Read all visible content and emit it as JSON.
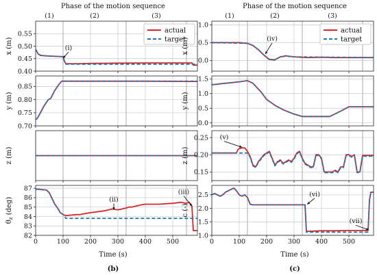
{
  "figure": {
    "sublabels": [
      "(b)",
      "(c)"
    ],
    "top_title": "Phase of the motion sequence",
    "phase_labels": [
      "(1)",
      "(2)",
      "(3)"
    ],
    "xlabel": "Time (s)",
    "legend": {
      "actual": "actual",
      "target": "target"
    }
  },
  "colors": {
    "actual": "#d62728",
    "target": "#1f77b4",
    "grid": "#c8c8c8",
    "phase_line": "#aaaaaa"
  },
  "chart_data": [
    {
      "type": "line",
      "column": "left",
      "row": 0,
      "ylabel": "x (m)",
      "ylim": [
        0.4,
        0.6
      ],
      "yticks": [
        0.4,
        0.45,
        0.5,
        0.55
      ],
      "ytick_labels": [
        "0.40",
        "0.45",
        "0.50",
        "0.55"
      ],
      "xlim": [
        0,
        590
      ],
      "xticks": [
        0,
        100,
        200,
        300,
        400,
        500
      ],
      "xtick_labels": [
        "0",
        "100",
        "200",
        "300",
        "400",
        "500"
      ],
      "phase_boundaries": [
        100,
        330,
        550
      ],
      "legend": true,
      "series": [
        {
          "name": "actual",
          "style": "solid",
          "x": [
            0,
            10,
            20,
            40,
            60,
            80,
            100,
            105,
            110,
            150,
            200,
            300,
            400,
            500,
            570,
            575,
            590
          ],
          "y": [
            0.487,
            0.468,
            0.463,
            0.461,
            0.46,
            0.459,
            0.458,
            0.44,
            0.43,
            0.43,
            0.431,
            0.432,
            0.433,
            0.433,
            0.433,
            0.424,
            0.424
          ]
        },
        {
          "name": "target",
          "style": "dashed",
          "x": [
            0,
            10,
            20,
            60,
            100,
            105,
            110,
            300,
            590
          ],
          "y": [
            0.487,
            0.468,
            0.462,
            0.46,
            0.458,
            0.44,
            0.428,
            0.428,
            0.428
          ]
        }
      ],
      "annotations": [
        {
          "text": "(i)",
          "x": 120,
          "y": 0.485,
          "arrow_to": [
            100,
            0.452
          ]
        }
      ]
    },
    {
      "type": "line",
      "column": "left",
      "row": 1,
      "ylabel": "y (m)",
      "ylim": [
        0.7,
        0.89
      ],
      "yticks": [
        0.7,
        0.75,
        0.8,
        0.85
      ],
      "ytick_labels": [
        "0.70",
        "0.75",
        "0.80",
        "0.85"
      ],
      "xlim": [
        0,
        590
      ],
      "xticks": [
        0,
        100,
        200,
        300,
        400,
        500
      ],
      "xtick_labels": [
        "0",
        "100",
        "200",
        "300",
        "400",
        "500"
      ],
      "phase_boundaries": [
        100,
        330,
        550
      ],
      "series": [
        {
          "name": "actual",
          "style": "solid",
          "x": [
            0,
            5,
            15,
            30,
            45,
            55,
            70,
            85,
            95,
            200,
            400,
            590
          ],
          "y": [
            0.725,
            0.727,
            0.745,
            0.775,
            0.798,
            0.805,
            0.835,
            0.858,
            0.87,
            0.87,
            0.87,
            0.869
          ]
        },
        {
          "name": "target",
          "style": "dashed",
          "x": [
            0,
            5,
            15,
            30,
            45,
            55,
            70,
            85,
            95,
            590
          ],
          "y": [
            0.725,
            0.727,
            0.745,
            0.775,
            0.798,
            0.805,
            0.835,
            0.858,
            0.87,
            0.87
          ]
        }
      ]
    },
    {
      "type": "line",
      "column": "left",
      "row": 2,
      "ylabel": "z (m)",
      "ylim": [
        0.0,
        0.14
      ],
      "yticks": [],
      "ytick_labels": [],
      "xlim": [
        0,
        590
      ],
      "xticks": [
        0,
        100,
        200,
        300,
        400,
        500
      ],
      "xtick_labels": [
        "0",
        "100",
        "200",
        "300",
        "400",
        "500"
      ],
      "phase_boundaries": [
        100,
        330,
        550
      ],
      "series": [
        {
          "name": "actual",
          "style": "solid",
          "x": [
            0,
            590
          ],
          "y": [
            0.07,
            0.07
          ]
        },
        {
          "name": "target",
          "style": "dashed",
          "x": [
            0,
            590
          ],
          "y": [
            0.07,
            0.07
          ]
        }
      ]
    },
    {
      "type": "line",
      "column": "left",
      "row": 3,
      "ylabel": "θz (deg)",
      "ylim": [
        82,
        87.3
      ],
      "yticks": [
        82,
        83,
        84,
        85,
        86,
        87
      ],
      "ytick_labels": [
        "82",
        "83",
        "84",
        "85",
        "86",
        "87"
      ],
      "xlim": [
        0,
        590
      ],
      "xticks": [
        0,
        100,
        200,
        300,
        400,
        500
      ],
      "xtick_labels": [
        "0",
        "100",
        "200",
        "300",
        "400",
        "500"
      ],
      "phase_boundaries": [
        100,
        330,
        550
      ],
      "series": [
        {
          "name": "actual",
          "style": "solid",
          "x": [
            0,
            10,
            40,
            50,
            60,
            70,
            80,
            90,
            100,
            110,
            150,
            160,
            200,
            250,
            280,
            300,
            330,
            340,
            350,
            380,
            400,
            450,
            500,
            530,
            550,
            560,
            570,
            575,
            590
          ],
          "y": [
            86.9,
            86.9,
            86.8,
            86.5,
            85.9,
            85.3,
            84.9,
            84.4,
            84.2,
            84.1,
            84.2,
            84.2,
            84.4,
            84.6,
            84.8,
            84.7,
            84.9,
            85.0,
            85.0,
            85.2,
            85.3,
            85.3,
            85.4,
            85.5,
            85.4,
            85.5,
            85.1,
            82.5,
            82.5
          ]
        },
        {
          "name": "target",
          "style": "dashed",
          "x": [
            0,
            40,
            50,
            60,
            70,
            80,
            90,
            100,
            110,
            590
          ],
          "y": [
            86.9,
            86.8,
            86.5,
            85.9,
            85.3,
            84.9,
            84.4,
            84.2,
            83.8,
            83.8
          ]
        }
      ],
      "annotations": [
        {
          "text": "(ii)",
          "x": 285,
          "y": 85.6,
          "arrow_to": [
            285,
            84.7
          ]
        },
        {
          "text": "(iii)",
          "x": 540,
          "y": 86.4,
          "arrow_to": [
            570,
            85.1
          ]
        }
      ]
    },
    {
      "type": "line",
      "column": "right",
      "row": 0,
      "ylabel": "x (m)",
      "ylim": [
        -0.3,
        1.1
      ],
      "yticks": [
        0.0,
        0.5,
        1.0
      ],
      "ytick_labels": [
        "0.0",
        "0.5",
        "1.0"
      ],
      "xlim": [
        0,
        590
      ],
      "xticks": [
        0,
        100,
        200,
        300,
        400,
        500
      ],
      "xtick_labels": [
        "0",
        "100",
        "200",
        "300",
        "400",
        "500"
      ],
      "phase_boundaries": [
        130,
        330,
        550
      ],
      "legend": true,
      "series": [
        {
          "name": "actual",
          "style": "solid",
          "x": [
            0,
            50,
            100,
            130,
            150,
            170,
            190,
            210,
            230,
            250,
            270,
            300,
            350,
            400,
            450,
            500,
            550,
            590
          ],
          "y": [
            0.5,
            0.5,
            0.5,
            0.48,
            0.42,
            0.3,
            0.15,
            0.03,
            0.02,
            0.1,
            0.13,
            0.1,
            0.08,
            0.09,
            0.08,
            0.08,
            0.08,
            0.08
          ]
        },
        {
          "name": "target",
          "style": "dashed",
          "x": [
            0,
            130,
            150,
            170,
            190,
            210,
            230,
            250,
            270,
            300,
            590
          ],
          "y": [
            0.5,
            0.48,
            0.42,
            0.3,
            0.15,
            0.02,
            0.01,
            0.1,
            0.12,
            0.1,
            0.08
          ]
        }
      ],
      "annotations": [
        {
          "text": "(iv)",
          "x": 220,
          "y": 0.55,
          "arrow_to": [
            195,
            0.18
          ]
        }
      ]
    },
    {
      "type": "line",
      "column": "right",
      "row": 1,
      "ylabel": "y (m)",
      "ylim": [
        -0.1,
        1.6
      ],
      "yticks": [
        0.0,
        0.5,
        1.0,
        1.5
      ],
      "ytick_labels": [
        "0.0",
        "0.5",
        "1.0",
        "1.5"
      ],
      "xlim": [
        0,
        590
      ],
      "xticks": [
        0,
        100,
        200,
        300,
        400,
        500
      ],
      "xtick_labels": [
        "0",
        "100",
        "200",
        "300",
        "400",
        "500"
      ],
      "phase_boundaries": [
        130,
        330,
        550
      ],
      "series": [
        {
          "name": "actual",
          "style": "solid",
          "x": [
            0,
            50,
            100,
            130,
            150,
            180,
            200,
            230,
            260,
            300,
            330,
            350,
            400,
            430,
            470,
            500,
            590
          ],
          "y": [
            1.3,
            1.35,
            1.4,
            1.44,
            1.35,
            1.05,
            0.8,
            0.6,
            0.45,
            0.3,
            0.22,
            0.22,
            0.22,
            0.22,
            0.4,
            0.55,
            0.55
          ]
        },
        {
          "name": "target",
          "style": "dashed",
          "x": [
            0,
            50,
            100,
            130,
            150,
            180,
            200,
            230,
            260,
            300,
            330,
            430,
            470,
            500,
            590
          ],
          "y": [
            1.3,
            1.35,
            1.4,
            1.44,
            1.35,
            1.05,
            0.8,
            0.6,
            0.45,
            0.3,
            0.22,
            0.22,
            0.4,
            0.55,
            0.55
          ]
        }
      ]
    },
    {
      "type": "line",
      "column": "right",
      "row": 2,
      "ylabel": "z (m)",
      "ylim": [
        0.125,
        0.27
      ],
      "yticks": [
        0.15,
        0.2,
        0.25
      ],
      "ytick_labels": [
        "0.15",
        "0.20",
        "0.25"
      ],
      "xlim": [
        0,
        590
      ],
      "xticks": [
        0,
        100,
        200,
        300,
        400,
        500
      ],
      "xtick_labels": [
        "0",
        "100",
        "200",
        "300",
        "400",
        "500"
      ],
      "phase_boundaries": [
        130,
        330,
        550
      ],
      "series": [
        {
          "name": "actual",
          "style": "solid",
          "x": [
            0,
            90,
            95,
            100,
            110,
            120,
            130,
            140,
            150,
            160,
            170,
            180,
            190,
            200,
            210,
            220,
            230,
            240,
            250,
            260,
            270,
            280,
            290,
            300,
            310,
            320,
            330,
            340,
            350,
            360,
            370,
            380,
            390,
            400,
            410,
            420,
            430,
            440,
            450,
            460,
            470,
            480,
            490,
            500,
            510,
            520,
            530,
            540,
            550,
            590
          ],
          "y": [
            0.205,
            0.205,
            0.215,
            0.218,
            0.22,
            0.22,
            0.21,
            0.195,
            0.17,
            0.165,
            0.18,
            0.19,
            0.2,
            0.205,
            0.21,
            0.19,
            0.17,
            0.18,
            0.185,
            0.175,
            0.18,
            0.185,
            0.18,
            0.19,
            0.205,
            0.21,
            0.19,
            0.175,
            0.17,
            0.165,
            0.165,
            0.2,
            0.2,
            0.19,
            0.15,
            0.15,
            0.15,
            0.15,
            0.155,
            0.15,
            0.165,
            0.165,
            0.2,
            0.2,
            0.195,
            0.2,
            0.15,
            0.15,
            0.198,
            0.198
          ]
        },
        {
          "name": "target",
          "style": "dashed",
          "x": [
            0,
            130,
            140,
            150,
            160,
            170,
            180,
            190,
            200,
            210,
            220,
            230,
            240,
            250,
            260,
            270,
            280,
            290,
            300,
            310,
            320,
            330,
            340,
            350,
            360,
            370,
            380,
            390,
            400,
            410,
            420,
            430,
            440,
            450,
            460,
            470,
            480,
            490,
            500,
            510,
            520,
            530,
            540,
            550,
            590
          ],
          "y": [
            0.205,
            0.205,
            0.193,
            0.168,
            0.163,
            0.178,
            0.188,
            0.198,
            0.203,
            0.208,
            0.188,
            0.168,
            0.178,
            0.183,
            0.173,
            0.178,
            0.183,
            0.178,
            0.188,
            0.203,
            0.208,
            0.188,
            0.173,
            0.168,
            0.163,
            0.163,
            0.198,
            0.198,
            0.188,
            0.148,
            0.148,
            0.148,
            0.148,
            0.153,
            0.148,
            0.163,
            0.163,
            0.198,
            0.198,
            0.193,
            0.198,
            0.148,
            0.148,
            0.196,
            0.196
          ]
        }
      ],
      "annotations": [
        {
          "text": "(v)",
          "x": 45,
          "y": 0.245,
          "arrow_to": [
            110,
            0.222
          ]
        }
      ]
    },
    {
      "type": "line",
      "column": "right",
      "row": 3,
      "ylabel": "c (-)",
      "ylim": [
        1.0,
        2.85
      ],
      "yticks": [
        1.0,
        1.5,
        2.0,
        2.5
      ],
      "ytick_labels": [
        "1.0",
        "1.5",
        "2.0",
        "2.5"
      ],
      "xlim": [
        0,
        590
      ],
      "xticks": [
        0,
        100,
        200,
        300,
        400,
        500
      ],
      "xtick_labels": [
        "0",
        "100",
        "200",
        "300",
        "400",
        "500"
      ],
      "phase_boundaries": [
        130,
        330,
        550
      ],
      "series": [
        {
          "name": "actual",
          "style": "solid",
          "x": [
            0,
            10,
            20,
            30,
            40,
            50,
            60,
            70,
            80,
            90,
            100,
            110,
            120,
            130,
            140,
            150,
            200,
            250,
            300,
            330,
            340,
            345,
            350,
            400,
            450,
            500,
            550,
            570,
            575,
            580,
            590
          ],
          "y": [
            2.5,
            2.55,
            2.5,
            2.45,
            2.5,
            2.6,
            2.65,
            2.7,
            2.75,
            2.65,
            2.5,
            2.45,
            2.5,
            2.4,
            2.15,
            2.13,
            2.13,
            2.13,
            2.13,
            2.13,
            2.13,
            1.15,
            1.15,
            1.17,
            1.17,
            1.18,
            1.18,
            1.18,
            2.3,
            2.6,
            2.6
          ]
        },
        {
          "name": "target",
          "style": "dashed",
          "x": [
            0,
            10,
            20,
            30,
            40,
            50,
            60,
            70,
            80,
            90,
            100,
            110,
            120,
            130,
            140,
            150,
            340,
            345,
            350,
            570,
            575,
            580,
            590
          ],
          "y": [
            2.5,
            2.55,
            2.5,
            2.45,
            2.5,
            2.6,
            2.65,
            2.7,
            2.75,
            2.65,
            2.5,
            2.45,
            2.5,
            2.4,
            2.15,
            2.13,
            2.13,
            1.12,
            1.12,
            1.12,
            2.3,
            2.6,
            2.6
          ]
        }
      ],
      "annotations": [
        {
          "text": "(vi)",
          "x": 375,
          "y": 2.45,
          "arrow_to": [
            348,
            2.15
          ]
        },
        {
          "text": "(vii)",
          "x": 525,
          "y": 1.45,
          "arrow_to": [
            572,
            1.2
          ]
        }
      ]
    }
  ]
}
